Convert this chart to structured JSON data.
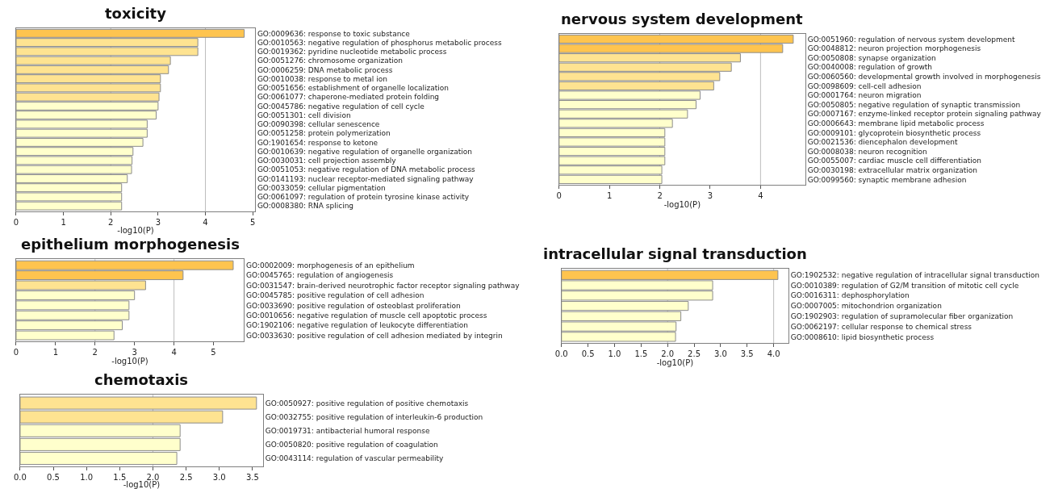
{
  "chart_data": [
    {
      "type": "bar",
      "orientation": "horizontal",
      "title": "toxicity",
      "xlabel": "-log10(P)",
      "grid": "x",
      "categories": [
        "GO:0009636: response to toxic substance",
        "GO:0010563: negative regulation of phosphorus metabolic process",
        "GO:0019362: pyridine nucleotide metabolic process",
        "GO:0051276: chromosome organization",
        "GO:0006259: DNA metabolic process",
        "GO:0010038: response to metal ion",
        "GO:0051656: establishment of organelle localization",
        "GO:0061077: chaperone-mediated protein folding",
        "GO:0045786: negative regulation of cell cycle",
        "GO:0051301: cell division",
        "GO:0090398: cellular senescence",
        "GO:0051258: protein polymerization",
        "GO:1901654: response to ketone",
        "GO:0010639: negative regulation of organelle organization",
        "GO:0030031: cell projection assembly",
        "GO:0051053: negative regulation of DNA metabolic process",
        "GO:0141193: nuclear receptor-mediated signaling pathway",
        "GO:0033059: cellular pigmentation",
        "GO:0061097: regulation of protein tyrosine kinase activity",
        "GO:0008380: RNA splicing"
      ],
      "values": [
        4.82,
        3.84,
        3.84,
        3.26,
        3.22,
        3.05,
        3.05,
        3.02,
        3.0,
        2.96,
        2.77,
        2.77,
        2.68,
        2.47,
        2.45,
        2.44,
        2.35,
        2.23,
        2.23,
        2.23
      ],
      "colors": [
        "#fec44f",
        "#fee391",
        "#fee391",
        "#fee391",
        "#fee391",
        "#fee391",
        "#fee391",
        "#fee391",
        "#ffffcc",
        "#ffffcc",
        "#ffffcc",
        "#ffffcc",
        "#ffffcc",
        "#ffffcc",
        "#ffffcc",
        "#ffffcc",
        "#ffffcc",
        "#ffffcc",
        "#ffffcc",
        "#ffffcc"
      ],
      "xlim": [
        0,
        5.05
      ],
      "xticks": [
        0,
        1,
        2,
        3,
        4,
        5
      ]
    },
    {
      "type": "bar",
      "orientation": "horizontal",
      "title": "nervous system development",
      "xlabel": "-log10(P)",
      "grid": "x",
      "categories": [
        "GO:0051960: regulation of nervous system development",
        "GO:0048812: neuron projection morphogenesis",
        "GO:0050808: synapse organization",
        "GO:0040008: regulation of growth",
        "GO:0060560: developmental growth involved in morphogenesis",
        "GO:0098609: cell-cell adhesion",
        "GO:0001764: neuron migration",
        "GO:0050805: negative regulation of synaptic transmission",
        "GO:0007167: enzyme-linked receptor protein signaling pathway",
        "GO:0006643: membrane lipid metabolic process",
        "GO:0009101: glycoprotein biosynthetic process",
        "GO:0021536: diencephalon development",
        "GO:0008038: neuron recognition",
        "GO:0055007: cardiac muscle cell differentiation",
        "GO:0030198: extracellular matrix organization",
        "GO:0099560: synaptic membrane adhesion"
      ],
      "values": [
        4.65,
        4.44,
        3.6,
        3.42,
        3.19,
        3.07,
        2.8,
        2.72,
        2.55,
        2.25,
        2.1,
        2.1,
        2.1,
        2.1,
        2.04,
        2.04
      ],
      "colors": [
        "#fec44f",
        "#fec44f",
        "#fee391",
        "#fee391",
        "#fee391",
        "#fee391",
        "#ffffcc",
        "#ffffcc",
        "#ffffcc",
        "#ffffcc",
        "#ffffcc",
        "#ffffcc",
        "#ffffcc",
        "#ffffcc",
        "#ffffcc",
        "#ffffcc"
      ],
      "xlim": [
        0,
        4.89
      ],
      "xticks": [
        0,
        1,
        2,
        3,
        4
      ]
    },
    {
      "type": "bar",
      "orientation": "horizontal",
      "title": "epithelium morphogenesis",
      "xlabel": "-log10(P)",
      "grid": "x",
      "categories": [
        "GO:0002009: morphogenesis of an epithelium",
        "GO:0045765: regulation of angiogenesis",
        "GO:0031547: brain-derived neurotrophic factor receptor signaling pathway",
        "GO:0045785: positive regulation of cell adhesion",
        "GO:0033690: positive regulation of osteoblast proliferation",
        "GO:0010656: negative regulation of muscle cell apoptotic process",
        "GO:1902106: negative regulation of leukocyte differentiation",
        "GO:0033630: positive regulation of cell adhesion mediated by integrin"
      ],
      "values": [
        5.5,
        4.23,
        3.28,
        3.0,
        2.86,
        2.86,
        2.69,
        2.48
      ],
      "colors": [
        "#fec44f",
        "#fec44f",
        "#fee391",
        "#ffffcc",
        "#ffffcc",
        "#ffffcc",
        "#ffffcc",
        "#ffffcc"
      ],
      "xlim": [
        0,
        5.77
      ],
      "xticks": [
        0,
        1,
        2,
        3,
        4,
        5
      ]
    },
    {
      "type": "bar",
      "orientation": "horizontal",
      "title": "intracellular signal transduction",
      "xlabel": "-log10(P)",
      "grid": "x",
      "categories": [
        "GO:1902532: negative regulation of intracellular signal transduction",
        "GO:0010389: regulation of G2/M transition of mitotic cell cycle",
        "GO:0016311: dephosphorylation",
        "GO:0007005: mitochondrion organization",
        "GO:1902903: regulation of supramolecular fiber organization",
        "GO:0062197: cellular response to chemical stress",
        "GO:0008610: lipid biosynthetic process"
      ],
      "values": [
        4.08,
        2.85,
        2.85,
        2.39,
        2.25,
        2.16,
        2.15
      ],
      "colors": [
        "#fec44f",
        "#ffffcc",
        "#ffffcc",
        "#ffffcc",
        "#ffffcc",
        "#ffffcc",
        "#ffffcc"
      ],
      "xlim": [
        0,
        4.28
      ],
      "xticks": [
        {
          "value": 0,
          "label": "0.0"
        },
        0.5,
        {
          "value": 1,
          "label": "1.0"
        },
        1.5,
        {
          "value": 2,
          "label": "2.0"
        },
        2.5,
        {
          "value": 3,
          "label": "3.0"
        },
        3.5,
        {
          "value": 4,
          "label": "4.0"
        }
      ]
    },
    {
      "type": "bar",
      "orientation": "horizontal",
      "title": "chemotaxis",
      "xlabel": "-log10(P)",
      "grid": "x",
      "categories": [
        "GO:0050927: positive regulation of positive chemotaxis",
        "GO:0032755: positive regulation of interleukin-6 production",
        "GO:0019731: antibacterial humoral response",
        "GO:0050820: positive regulation of coagulation",
        "GO:0043114: regulation of vascular permeability"
      ],
      "values": [
        3.56,
        3.05,
        2.41,
        2.41,
        2.36
      ],
      "colors": [
        "#fee391",
        "#fee391",
        "#ffffcc",
        "#ffffcc",
        "#ffffcc"
      ],
      "xlim": [
        0,
        3.66
      ],
      "xticks": [
        {
          "value": 0,
          "label": "0.0"
        },
        0.5,
        {
          "value": 1,
          "label": "1.0"
        },
        1.5,
        {
          "value": 2,
          "label": "2.0"
        },
        2.5,
        {
          "value": 3,
          "label": "3.0"
        },
        3.5
      ]
    }
  ]
}
